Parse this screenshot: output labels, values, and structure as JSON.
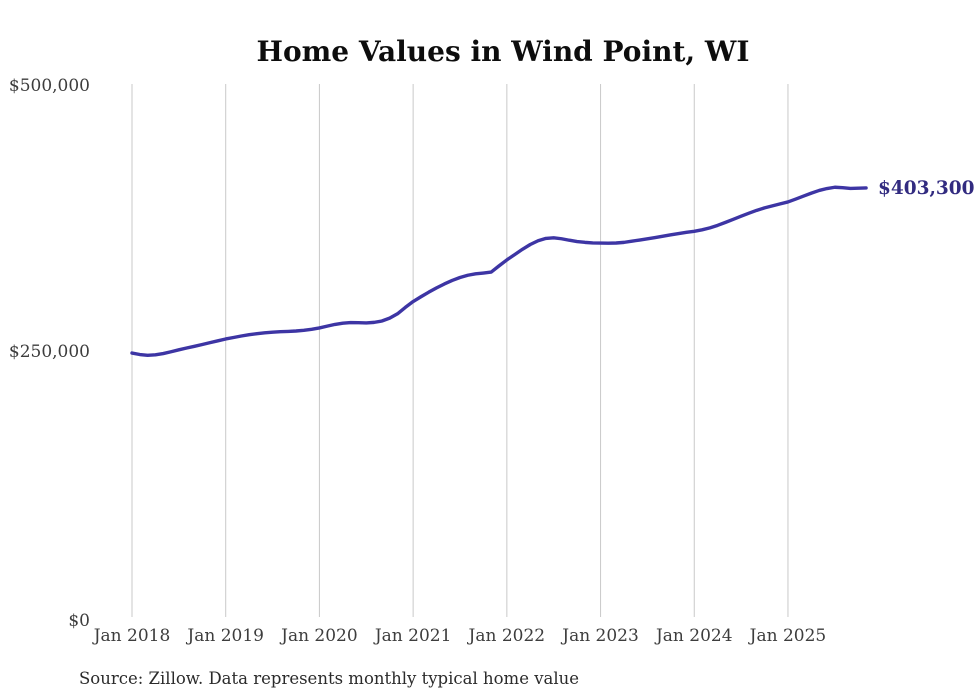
{
  "page": {
    "background": "#ffffff"
  },
  "source_note": "Source: Zillow. Data represents monthly typical home value",
  "colors": {
    "line": "#3d35a4",
    "end_label": "#322b80",
    "grid": "#c9c9c9",
    "tick_text": "#3d3d3d",
    "title_text": "#0d0d0d",
    "source_text": "#2b2b2b"
  },
  "chart_data": {
    "type": "line",
    "title": "Home Values in Wind Point, WI",
    "x_tick_labels": [
      "Jan 2018",
      "Jan 2019",
      "Jan 2020",
      "Jan 2021",
      "Jan 2022",
      "Jan 2023",
      "Jan 2024",
      "Jan 2025"
    ],
    "y_tick_labels": [
      "$0",
      "$250,000",
      "$500,000"
    ],
    "ylim": [
      0,
      500000
    ],
    "grid": "vertical-only",
    "legend": "none",
    "end_annotation": "$403,300",
    "series": [
      {
        "name": "Monthly typical home value",
        "start_month": "Jan 2018",
        "frequency": "monthly",
        "values": [
          248100,
          246700,
          246000,
          246400,
          247600,
          249300,
          251100,
          252800,
          254400,
          256100,
          257900,
          259600,
          261300,
          262700,
          264100,
          265300,
          266300,
          267100,
          267700,
          268100,
          268400,
          268800,
          269400,
          270400,
          271700,
          273400,
          275000,
          276100,
          276700,
          276600,
          276400,
          276900,
          278200,
          280900,
          285000,
          291000,
          296500,
          301000,
          305300,
          309300,
          313000,
          316300,
          319100,
          321200,
          322500,
          323300,
          324200,
          330000,
          335600,
          340600,
          345600,
          350100,
          353600,
          355800,
          356400,
          355500,
          354100,
          352900,
          352100,
          351600,
          351400,
          351300,
          351500,
          352100,
          353200,
          354300,
          355400,
          356600,
          357900,
          359200,
          360400,
          361500,
          362500,
          363900,
          365700,
          368100,
          370900,
          373800,
          376700,
          379500,
          382200,
          384500,
          386400,
          388300,
          390100,
          392800,
          395600,
          398400,
          400900,
          402700,
          403900,
          403500,
          402800,
          403000,
          403300
        ]
      }
    ]
  }
}
